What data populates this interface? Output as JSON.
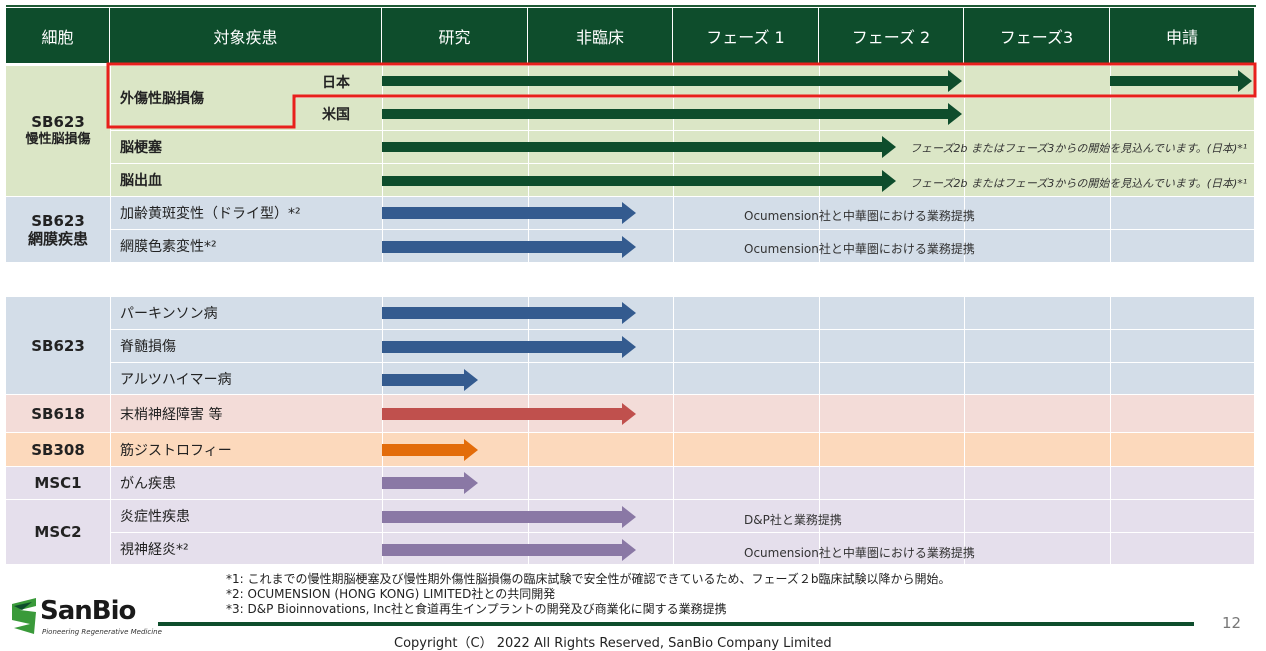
{
  "header": {
    "cell": "細胞",
    "disease": "対象疾患",
    "phases": [
      "研究",
      "非臨床",
      "フェーズ 1",
      "フェーズ 2",
      "フェーズ3",
      "申請"
    ]
  },
  "groups": {
    "sb623_chronic": {
      "line1": "SB623",
      "line2": "慢性脳損傷"
    },
    "sb623_retina": {
      "line1": "SB623",
      "line2": "網膜疾患"
    },
    "sb623": "SB623",
    "sb618": "SB618",
    "sb308": "SB308",
    "msc1": "MSC1",
    "msc2": "MSC2"
  },
  "rows": {
    "tbi": "外傷性脳損傷",
    "tbi_japan": "日本",
    "tbi_us": "米国",
    "stroke": "脳梗塞",
    "hemorrhage": "脳出血",
    "amd": "加齢黄斑変性（ドライ型）*²",
    "rp": "網膜色素変性*²",
    "parkinson": "パーキンソン病",
    "sci": "脊髄損傷",
    "alzheimer": "アルツハイマー病",
    "peripheral": "末梢神経障害 等",
    "muscular": "筋ジストロフィー",
    "cancer": "がん疾患",
    "inflammatory": "炎症性疾患",
    "optic": "視神経炎*²"
  },
  "notes": {
    "stroke_note": "フェーズ2b またはフェーズ3からの開始を見込んでいます。(日本)*¹",
    "hemorrhage_note": "フェーズ2b またはフェーズ3からの開始を見込んでいます。(日本)*¹",
    "amd_note": "Ocumension社と中華圏における業務提携",
    "rp_note": "Ocumension社と中華圏における業務提携",
    "inflam_note": "D&P社と業務提携",
    "optic_note": "Ocumension社と中華圏における業務提携"
  },
  "footnotes": [
    "*1: これまでの慢性期脳梗塞及び慢性期外傷性脳損傷の臨床試験で安全性が確認できているため、フェーズ２b臨床試験以降から開始。",
    "*2: OCUMENSION (HONG KONG) LIMITED社との共同開発",
    "*3: D&P Bioinnovations, Inc社と食道再生インプラントの開発及び商業化に関する業務提携"
  ],
  "copyright": "Copyright（C） 2022 All Rights Reserved, SanBio Company Limited",
  "page_number": "12",
  "logo": {
    "name": "SanBio",
    "tagline": "Pioneering Regenerative Medicine"
  },
  "colors": {
    "header": "#0e4d2c",
    "green_row": "#dbe6c6",
    "blue_row": "#d3dde8",
    "red_row": "#f3dcd8",
    "orange_row": "#fcd9bc",
    "purple_row": "#e5dfec",
    "highlight": "#e8201c",
    "green_arrow": "#0e4d2c",
    "blue_arrow": "#345b8f",
    "red_arrow": "#c0504d",
    "orange_arrow": "#e36c0a",
    "purple_arrow": "#8a78a5"
  }
}
